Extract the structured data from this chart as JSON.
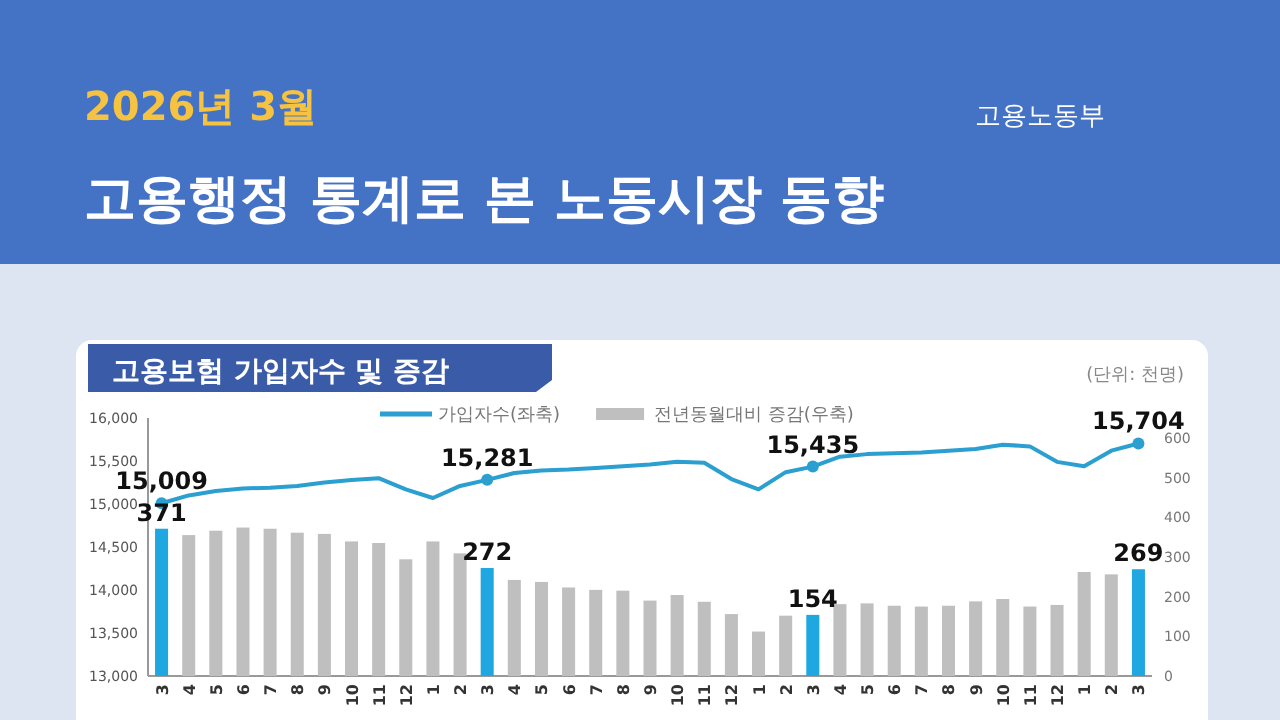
{
  "chart_data": {
    "type": "bar",
    "title": "고용행정 통계로 본 노동시장 동향",
    "subtitle": "2026년 3월",
    "annotations": [
      "고용노동부",
      "고용보험 가입자수 및 증감",
      "(단위: 천명)"
    ],
    "categories": [
      "3",
      "4",
      "5",
      "6",
      "7",
      "8",
      "9",
      "10",
      "11",
      "12",
      "1",
      "2",
      "3",
      "4",
      "5",
      "6",
      "7",
      "8",
      "9",
      "10",
      "11",
      "12",
      "1",
      "2",
      "3",
      "4",
      "5",
      "6",
      "7",
      "8",
      "9",
      "10",
      "11",
      "12",
      "1",
      "2",
      "3"
    ],
    "series": [
      {
        "name": "가입자수(좌축)",
        "type": "line",
        "axis": "y",
        "color": "#2a9fd0",
        "values": [
          15009,
          15100,
          15150,
          15180,
          15190,
          15210,
          15250,
          15280,
          15300,
          15170,
          15070,
          15210,
          15281,
          15360,
          15390,
          15400,
          15420,
          15440,
          15460,
          15490,
          15480,
          15290,
          15170,
          15370,
          15435,
          15550,
          15580,
          15590,
          15600,
          15620,
          15640,
          15690,
          15670,
          15490,
          15440,
          15620,
          15704
        ],
        "value_labels": [
          "15,009",
          null,
          null,
          null,
          null,
          null,
          null,
          null,
          null,
          null,
          null,
          null,
          "15,281",
          null,
          null,
          null,
          null,
          null,
          null,
          null,
          null,
          null,
          null,
          null,
          "15,435",
          null,
          null,
          null,
          null,
          null,
          null,
          null,
          null,
          null,
          null,
          null,
          "15,704"
        ]
      },
      {
        "name": "전년동월대비 증감(우축)",
        "axis": "y2",
        "color": "#bfbfbf",
        "values": [
          371,
          355,
          366,
          374,
          371,
          361,
          358,
          339,
          335,
          294,
          339,
          309,
          272,
          242,
          237,
          223,
          217,
          215,
          190,
          204,
          187,
          156,
          112,
          152,
          154,
          181,
          183,
          177,
          175,
          177,
          188,
          194,
          175,
          179,
          262,
          256,
          269
        ],
        "colors": [
          "#1ea7e1",
          "#bfbfbf",
          "#bfbfbf",
          "#bfbfbf",
          "#bfbfbf",
          "#bfbfbf",
          "#bfbfbf",
          "#bfbfbf",
          "#bfbfbf",
          "#bfbfbf",
          "#bfbfbf",
          "#bfbfbf",
          "#1ea7e1",
          "#bfbfbf",
          "#bfbfbf",
          "#bfbfbf",
          "#bfbfbf",
          "#bfbfbf",
          "#bfbfbf",
          "#bfbfbf",
          "#bfbfbf",
          "#bfbfbf",
          "#bfbfbf",
          "#bfbfbf",
          "#1ea7e1",
          "#bfbfbf",
          "#bfbfbf",
          "#bfbfbf",
          "#bfbfbf",
          "#bfbfbf",
          "#bfbfbf",
          "#bfbfbf",
          "#bfbfbf",
          "#bfbfbf",
          "#bfbfbf",
          "#bfbfbf",
          "#1ea7e1"
        ],
        "value_labels": [
          "371",
          null,
          null,
          null,
          null,
          null,
          null,
          null,
          null,
          null,
          null,
          null,
          "272",
          null,
          null,
          null,
          null,
          null,
          null,
          null,
          null,
          null,
          null,
          null,
          "154",
          null,
          null,
          null,
          null,
          null,
          null,
          null,
          null,
          null,
          null,
          null,
          "269"
        ]
      }
    ],
    "ylim": [
      13000,
      16000
    ],
    "yticks": [
      {
        "value": 13000,
        "label": "13,000"
      },
      {
        "value": 13500,
        "label": "13,500"
      },
      {
        "value": 14000,
        "label": "14,000"
      },
      {
        "value": 14500,
        "label": "14,500"
      },
      {
        "value": 15000,
        "label": "15,000"
      },
      {
        "value": 15500,
        "label": "15,500"
      },
      {
        "value": 16000,
        "label": "16,000"
      }
    ],
    "y2lim": [
      0,
      650
    ],
    "y2ticks": [
      0,
      100,
      200,
      300,
      400,
      500,
      600
    ],
    "legend": "top",
    "grid": false
  }
}
